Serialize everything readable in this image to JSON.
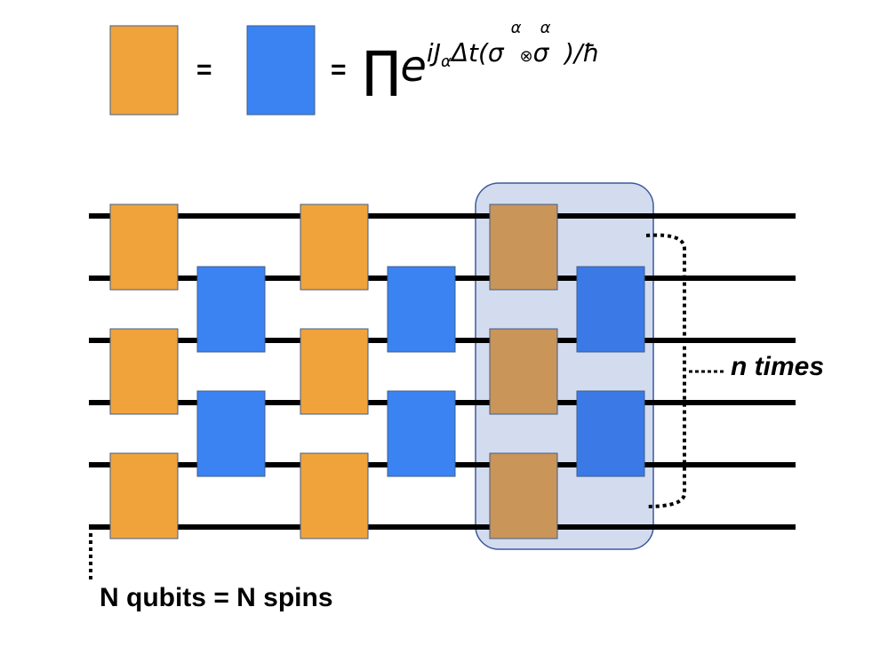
{
  "legend": {
    "equals_1": "=",
    "equals_2": "=",
    "formula": {
      "prod": "∏",
      "base": "e",
      "exponent_prefix": "iJ",
      "exponent_sub": "α",
      "exponent_mid": "Δt(σ",
      "sigma_sup_1": "α",
      "otimes": "⊗",
      "sigma_2": "σ",
      "sigma_sup_2": "α",
      "exponent_suffix": ")/ħ"
    }
  },
  "labels": {
    "repeat": "n times",
    "qubits": "N qubits = N spins"
  },
  "colors": {
    "gate_a": "#f0a33b",
    "gate_b": "#3b82f3",
    "gate_a_highlighted": "#c99558",
    "gate_b_highlighted": "#3b79e6",
    "highlight_box": "#d3dcef",
    "highlight_border": "#3d5a9a",
    "wire": "#000000",
    "gate_border": "#3f5d8a"
  },
  "circuit": {
    "wire_count": 6,
    "repeat_count": "n",
    "layers": [
      {
        "type": "gate_a",
        "pairs": [
          [
            0,
            1
          ],
          [
            2,
            3
          ],
          [
            4,
            5
          ]
        ],
        "highlighted": false
      },
      {
        "type": "gate_b",
        "pairs": [
          [
            1,
            2
          ],
          [
            3,
            4
          ]
        ],
        "highlighted": false
      },
      {
        "type": "gate_a",
        "pairs": [
          [
            0,
            1
          ],
          [
            2,
            3
          ],
          [
            4,
            5
          ]
        ],
        "highlighted": false
      },
      {
        "type": "gate_b",
        "pairs": [
          [
            1,
            2
          ],
          [
            3,
            4
          ]
        ],
        "highlighted": false
      },
      {
        "type": "gate_a",
        "pairs": [
          [
            0,
            1
          ],
          [
            2,
            3
          ],
          [
            4,
            5
          ]
        ],
        "highlighted": true
      },
      {
        "type": "gate_b",
        "pairs": [
          [
            1,
            2
          ],
          [
            3,
            4
          ]
        ],
        "highlighted": true
      }
    ]
  }
}
